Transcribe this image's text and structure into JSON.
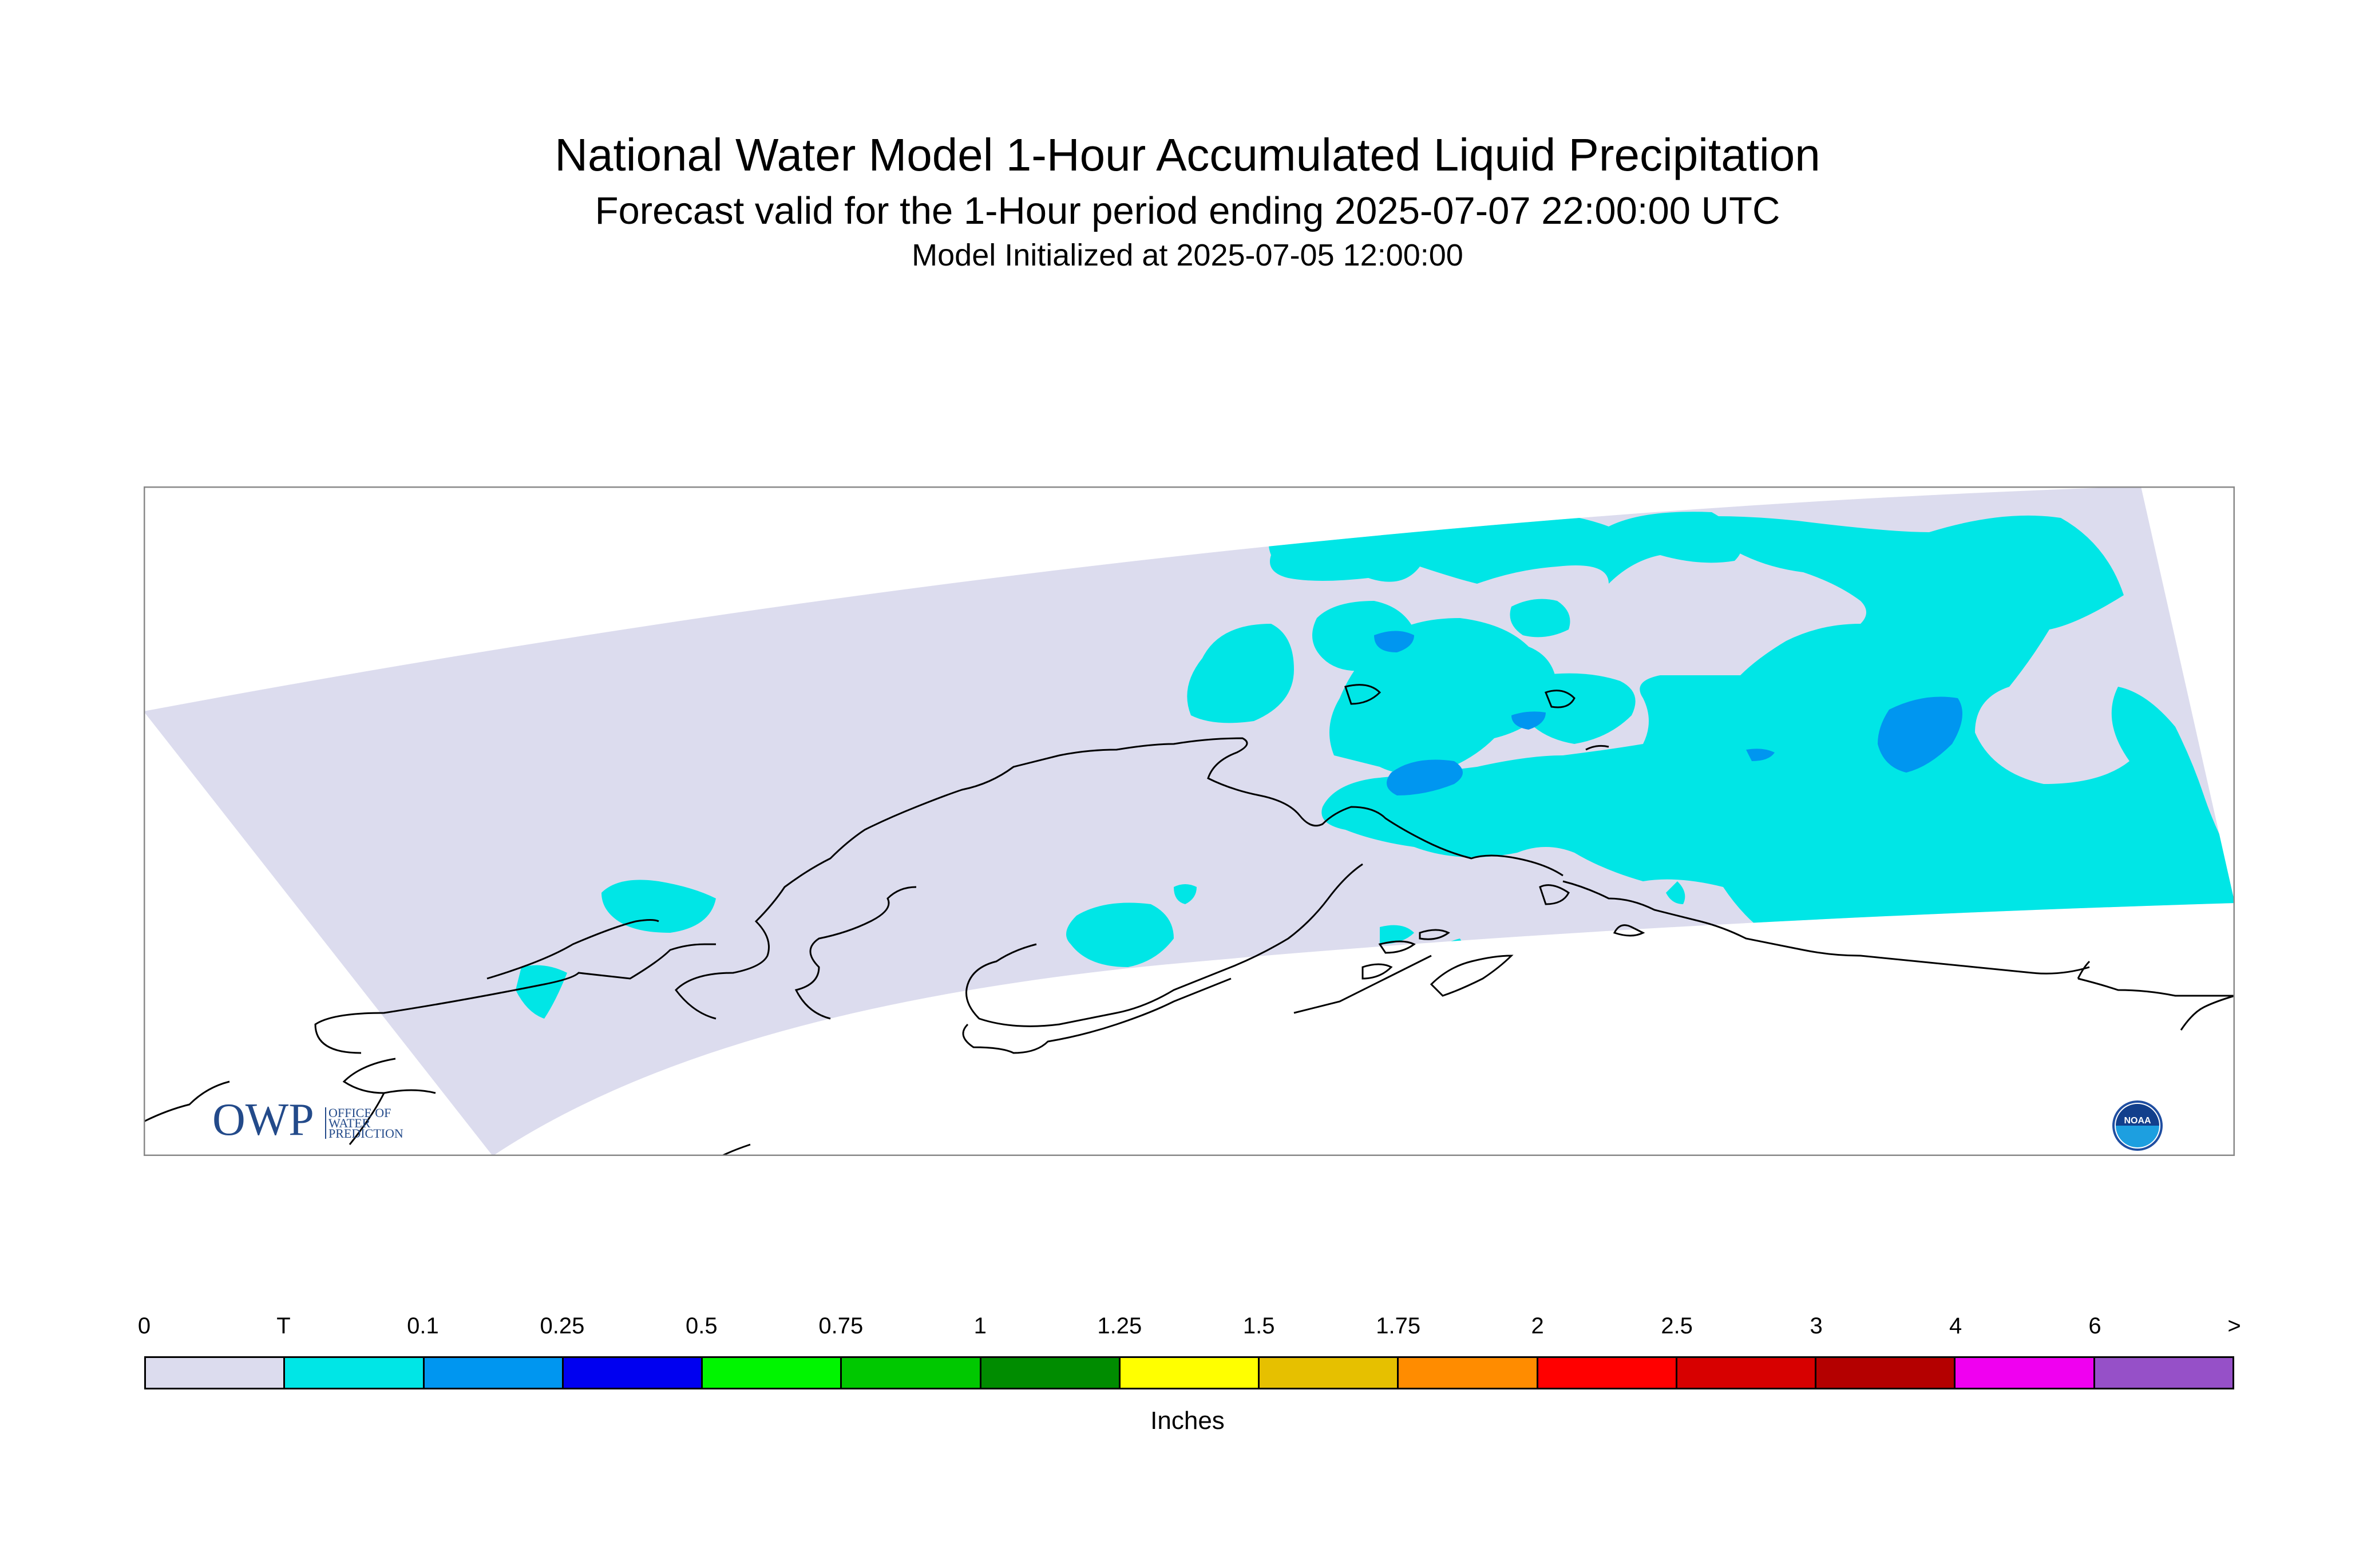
{
  "header": {
    "title": "National Water Model 1-Hour Accumulated Liquid Precipitation",
    "subtitle": "Forecast valid for the 1-Hour period ending 2025-07-07 22:00:00 UTC",
    "init": "Model Initialized at 2025-07-05 12:00:00"
  },
  "logos": {
    "owp_text": "OWP",
    "owp_line1": "OFFICE OF",
    "owp_line2": "WATER",
    "owp_line3": "PREDICTION",
    "noaa_text": "NOAA"
  },
  "legend": {
    "units": "Inches",
    "labels": [
      "0",
      "T",
      "0.1",
      "0.25",
      "0.5",
      "0.75",
      "1",
      "1.25",
      "1.5",
      "1.75",
      "2",
      "2.5",
      "3",
      "4",
      "6",
      ">"
    ],
    "colors": [
      "#dcdcee",
      "#00e6e6",
      "#0096f0",
      "#0000f0",
      "#00f500",
      "#00c800",
      "#008c00",
      "#ffff00",
      "#e6c000",
      "#ff8c00",
      "#ff0000",
      "#d70000",
      "#b40000",
      "#f000f0",
      "#9650c8"
    ]
  },
  "map_colors": {
    "domain": "#dcdcee",
    "trace": "#00e6e6",
    "light": "#0096f0",
    "coast": "#000000"
  }
}
